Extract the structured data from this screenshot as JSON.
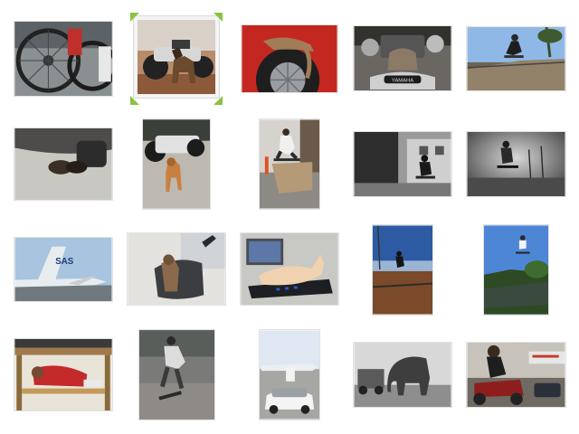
{
  "gallery": {
    "selection_color": "#8ac43f",
    "items": [
      {
        "subject": "bicycle-wheels",
        "selected": false
      },
      {
        "subject": "dog-with-motorcycle",
        "selected": true
      },
      {
        "subject": "cat-on-tire",
        "selected": false
      },
      {
        "subject": "cat-on-yamaha-motorcycle",
        "selected": false
      },
      {
        "subject": "skateboarder-on-ramp",
        "selected": false
      },
      {
        "subject": "cat-under-car",
        "selected": false
      },
      {
        "subject": "dog-by-motorcycle",
        "selected": false
      },
      {
        "subject": "skateboarder-on-barrier",
        "selected": false
      },
      {
        "subject": "skateboarder-street-bw",
        "selected": false
      },
      {
        "subject": "skateboarder-jump-bw",
        "selected": false
      },
      {
        "subject": "sas-airplane",
        "selected": false,
        "caption": "SAS"
      },
      {
        "subject": "cat-on-scooter",
        "selected": false
      },
      {
        "subject": "cat-on-laptop",
        "selected": false
      },
      {
        "subject": "skateboarder-sunset",
        "selected": false
      },
      {
        "subject": "skateboarder-air",
        "selected": false
      },
      {
        "subject": "child-under-table",
        "selected": false
      },
      {
        "subject": "skateboarder-kickflip",
        "selected": false
      },
      {
        "subject": "car-at-airport",
        "selected": false
      },
      {
        "subject": "elephant-and-truck",
        "selected": false
      },
      {
        "subject": "rider-on-atv",
        "selected": false
      }
    ]
  }
}
